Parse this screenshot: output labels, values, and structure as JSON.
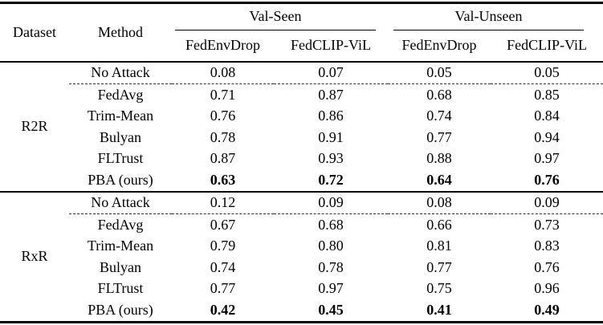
{
  "table": {
    "header": {
      "dataset": "Dataset",
      "method": "Method",
      "groups": [
        {
          "label": "Val-Seen"
        },
        {
          "label": "Val-Unseen"
        }
      ],
      "subcolumns": [
        "FedEnvDrop",
        "FedCLIP-ViL",
        "FedEnvDrop",
        "FedCLIP-ViL"
      ]
    },
    "sections": [
      {
        "dataset": "R2R",
        "rows": [
          {
            "method": "No Attack",
            "values": [
              "0.08",
              "0.07",
              "0.05",
              "0.05"
            ],
            "bold": false
          },
          {
            "method": "FedAvg",
            "values": [
              "0.71",
              "0.87",
              "0.68",
              "0.85"
            ],
            "bold": false
          },
          {
            "method": "Trim-Mean",
            "values": [
              "0.76",
              "0.86",
              "0.74",
              "0.84"
            ],
            "bold": false
          },
          {
            "method": "Bulyan",
            "values": [
              "0.78",
              "0.91",
              "0.77",
              "0.94"
            ],
            "bold": false
          },
          {
            "method": "FLTrust",
            "values": [
              "0.87",
              "0.93",
              "0.88",
              "0.97"
            ],
            "bold": false
          },
          {
            "method": "PBA (ours)",
            "values": [
              "0.63",
              "0.72",
              "0.64",
              "0.76"
            ],
            "bold": true
          }
        ]
      },
      {
        "dataset": "RxR",
        "rows": [
          {
            "method": "No Attack",
            "values": [
              "0.12",
              "0.09",
              "0.08",
              "0.09"
            ],
            "bold": false
          },
          {
            "method": "FedAvg",
            "values": [
              "0.67",
              "0.68",
              "0.66",
              "0.73"
            ],
            "bold": false
          },
          {
            "method": "Trim-Mean",
            "values": [
              "0.79",
              "0.80",
              "0.81",
              "0.83"
            ],
            "bold": false
          },
          {
            "method": "Bulyan",
            "values": [
              "0.74",
              "0.78",
              "0.77",
              "0.76"
            ],
            "bold": false
          },
          {
            "method": "FLTrust",
            "values": [
              "0.77",
              "0.97",
              "0.75",
              "0.96"
            ],
            "bold": false
          },
          {
            "method": "PBA (ours)",
            "values": [
              "0.42",
              "0.45",
              "0.41",
              "0.49"
            ],
            "bold": true
          }
        ]
      }
    ]
  },
  "colors": {
    "text": "#000000",
    "background": "#ffffff",
    "rule": "#000000"
  }
}
